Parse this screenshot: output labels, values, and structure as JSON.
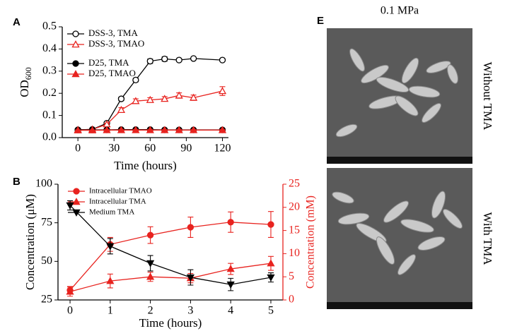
{
  "chart_data": [
    {
      "type": "line",
      "panel_label": "A",
      "ylabel": "OD",
      "ylabel_sub": "600",
      "xlabel": "Time (hours)",
      "x": [
        0,
        12,
        24,
        36,
        48,
        60,
        72,
        84,
        96,
        120
      ],
      "xlim": [
        -13,
        125
      ],
      "ylim": [
        0,
        0.5
      ],
      "xticks": [
        0,
        30,
        60,
        90,
        120
      ],
      "yticks": [
        {
          "value": 0,
          "label": "0.0"
        },
        {
          "value": 0.1,
          "label": "0.1"
        },
        {
          "value": 0.2,
          "label": "0.2"
        },
        {
          "value": 0.3,
          "label": "0.3"
        },
        {
          "value": 0.4,
          "label": "0.4"
        },
        {
          "value": 0.5,
          "label": "0.5"
        }
      ],
      "legend": "upper left",
      "series": [
        {
          "name": "DSS-3, TMA",
          "color": "#000000",
          "marker": "circle",
          "filled": false,
          "values": [
            0.035,
            0.037,
            0.065,
            0.175,
            0.26,
            0.345,
            0.355,
            0.35,
            0.357,
            0.35
          ],
          "errors": [
            0.003,
            0.003,
            0.005,
            0.008,
            0.008,
            0.01,
            0.01,
            0.006,
            0.006,
            0.006
          ]
        },
        {
          "name": "DSS-3, TMAO",
          "color": "#e8231f",
          "marker": "triangle",
          "filled": false,
          "values": [
            0.035,
            0.037,
            0.06,
            0.125,
            0.165,
            0.17,
            0.175,
            0.19,
            0.18,
            0.21
          ],
          "errors": [
            0.003,
            0.003,
            0.005,
            0.01,
            0.01,
            0.01,
            0.01,
            0.012,
            0.012,
            0.02
          ]
        },
        {
          "name": "D25, TMA",
          "color": "#000000",
          "marker": "circle",
          "filled": true,
          "values": [
            0.035,
            0.035,
            0.035,
            0.036,
            0.036,
            0.036,
            0.035,
            0.035,
            0.035,
            0.035
          ],
          "errors": [
            0.002,
            0.002,
            0.002,
            0.002,
            0.002,
            0.002,
            0.002,
            0.002,
            0.002,
            0.002
          ]
        },
        {
          "name": "D25, TMAO",
          "color": "#e8231f",
          "marker": "triangle",
          "filled": true,
          "values": [
            0.033,
            0.033,
            0.034,
            0.034,
            0.034,
            0.034,
            0.034,
            0.034,
            0.034,
            0.034
          ],
          "errors": [
            0.002,
            0.002,
            0.002,
            0.002,
            0.002,
            0.002,
            0.002,
            0.002,
            0.002,
            0.002
          ]
        }
      ]
    },
    {
      "type": "line",
      "panel_label": "B",
      "ylabel": "Concentration (μM)",
      "y2label": "Concentration (mM)",
      "y2color": "#e8231f",
      "xlabel": "Time (hours)",
      "x": [
        0,
        1,
        2,
        3,
        4,
        5
      ],
      "xlim": [
        -0.3,
        5.3
      ],
      "ylim": [
        25,
        100
      ],
      "y2lim": [
        0,
        25
      ],
      "xticks": [
        0,
        1,
        2,
        3,
        4,
        5
      ],
      "yticks": [
        25,
        50,
        75,
        100
      ],
      "y2ticks": [
        0,
        5,
        10,
        15,
        20,
        25
      ],
      "legend": "upper left",
      "series": [
        {
          "name": "Intracellular TMAO",
          "color": "#e8231f",
          "marker": "circle",
          "filled": true,
          "axis": "y2",
          "values": [
            2.1,
            12.0,
            14.0,
            15.7,
            16.8,
            16.3
          ],
          "errors": [
            0.8,
            1.5,
            1.8,
            2.2,
            2.2,
            2.8
          ]
        },
        {
          "name": "Intracellular TMA",
          "color": "#e8231f",
          "marker": "triangle",
          "filled": true,
          "axis": "y2",
          "values": [
            1.8,
            4.1,
            5.0,
            4.7,
            6.7,
            7.9
          ],
          "errors": [
            1.0,
            1.5,
            1.0,
            1.0,
            1.2,
            1.5
          ]
        },
        {
          "name": "Medium TMA",
          "color": "#000000",
          "marker": "triangle-down",
          "filled": true,
          "values": [
            86.3,
            59.8,
            48.8,
            39.6,
            35.0,
            39.6
          ],
          "errors": [
            3,
            5,
            5,
            5,
            4,
            3
          ]
        }
      ]
    }
  ],
  "images": {
    "panel_label": "E",
    "title": "0.1 MPa",
    "panels": [
      {
        "label": "Without TMA"
      },
      {
        "label": "With TMA"
      }
    ]
  }
}
